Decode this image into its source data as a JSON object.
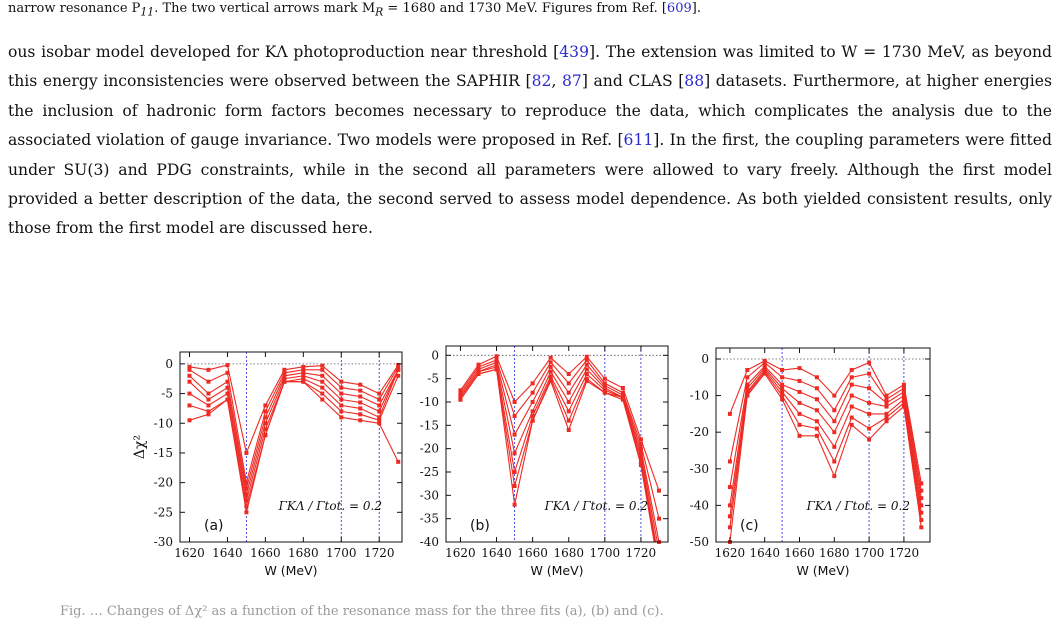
{
  "caption_tail": {
    "text": "narrow resonance P",
    "sub": "11",
    "rest": ". The two vertical arrows mark M",
    "sub2": "R",
    "rest2": " = 1680 and 1730 MeV. Figures from Ref. [",
    "ref": "609",
    "end": "]."
  },
  "paragraph": {
    "s1": "ous isobar model developed for KΛ photoproduction near threshold [",
    "r1": "439",
    "s2": "]. The extension was limited to W = 1730 MeV, as beyond this energy inconsistencies were observed between the SAPHIR [",
    "r2": "82",
    "s3": ", ",
    "r3": "87",
    "s4": "] and CLAS [",
    "r4": "88",
    "s5": "] datasets. Furthermore, at higher energies the inclusion of hadronic form factors becomes necessary to reproduce the data, which complicates the analysis due to the associated violation of gauge invariance. Two models were proposed in Ref. [",
    "r5": "611",
    "s6": "]. In the first, the coupling parameters were fitted under SU(3) and PDG constraints, while in the second all parameters were allowed to vary freely. Although the first model provided a better description of the data, the second served to assess model dependence. As both yielded consistent results, only those from the first model are discussed here."
  },
  "chart_data": [
    {
      "type": "line",
      "panel_label": "(a)",
      "annotation": "ΓKΛ / Γtot. = 0.2",
      "xlabel": "W (MeV)",
      "ylabel": "Δχ²",
      "xlim": [
        1615,
        1732
      ],
      "ylim": [
        -30,
        2
      ],
      "xticks": [
        1620,
        1640,
        1660,
        1680,
        1700,
        1720
      ],
      "yticks": [
        0,
        -5,
        -10,
        -15,
        -20,
        -25,
        -30
      ],
      "vlines": [
        1650,
        1700,
        1720
      ],
      "x": [
        1620,
        1630,
        1640,
        1650,
        1660,
        1670,
        1680,
        1690,
        1700,
        1710,
        1720,
        1730
      ],
      "series": [
        {
          "values": [
            -0.5,
            -1,
            -0.2,
            -15,
            -7,
            -1,
            -0.5,
            -0.3,
            -3,
            -3.5,
            -5,
            -0.2
          ]
        },
        {
          "values": [
            -1,
            -3,
            -1.5,
            -20,
            -8,
            -1.5,
            -1,
            -1,
            -4,
            -4.5,
            -6,
            -0.5
          ]
        },
        {
          "values": [
            -2,
            -5,
            -3,
            -21,
            -9,
            -2,
            -1.5,
            -2,
            -5,
            -5.5,
            -7,
            -1
          ]
        },
        {
          "values": [
            -3,
            -6,
            -4,
            -22,
            -10,
            -2.5,
            -2,
            -3,
            -6,
            -6.5,
            -8,
            -1
          ]
        },
        {
          "values": [
            -5,
            -7,
            -5,
            -23,
            -11,
            -3,
            -2.5,
            -4,
            -7,
            -7.5,
            -9,
            -1
          ]
        },
        {
          "values": [
            -7,
            -8,
            -6,
            -24,
            -12,
            -3,
            -3,
            -5,
            -8,
            -8.5,
            -9.5,
            -2
          ]
        },
        {
          "values": [
            -9.5,
            -8.5,
            -6,
            -25,
            -12,
            -3,
            -3,
            -6,
            -9,
            -9.5,
            -10,
            -16.5
          ]
        }
      ]
    },
    {
      "type": "line",
      "panel_label": "(b)",
      "annotation": "ΓKΛ / Γtot. = 0.2",
      "xlabel": "W (MeV)",
      "ylabel": "",
      "xlim": [
        1612,
        1735
      ],
      "ylim": [
        -40,
        2
      ],
      "xticks": [
        1620,
        1640,
        1660,
        1680,
        1700,
        1720
      ],
      "yticks": [
        0,
        -5,
        -10,
        -15,
        -20,
        -25,
        -30,
        -35,
        -40
      ],
      "vlines": [
        1650,
        1700,
        1720
      ],
      "x": [
        1620,
        1630,
        1640,
        1650,
        1660,
        1670,
        1680,
        1690,
        1700,
        1710,
        1720,
        1730
      ],
      "series": [
        {
          "values": [
            -7.5,
            -2,
            -0.2,
            -10,
            -6,
            -0.5,
            -4,
            -0.3,
            -5,
            -7,
            -18,
            -29
          ]
        },
        {
          "values": [
            -8,
            -2.5,
            -1,
            -13,
            -8,
            -1.5,
            -6,
            -1,
            -6,
            -8,
            -19,
            -35
          ]
        },
        {
          "values": [
            -8.5,
            -3,
            -1.5,
            -17,
            -10,
            -2.5,
            -8,
            -2,
            -6.5,
            -8.5,
            -20,
            -40
          ]
        },
        {
          "values": [
            -9,
            -3.5,
            -2,
            -21,
            -12,
            -3.5,
            -10,
            -3,
            -7,
            -9,
            -21,
            -42
          ]
        },
        {
          "values": [
            -9,
            -3.5,
            -2.5,
            -25,
            -13,
            -4.5,
            -12,
            -4,
            -7.5,
            -9,
            -22,
            -44
          ]
        },
        {
          "values": [
            -9.5,
            -4,
            -3,
            -28,
            -14,
            -5,
            -14,
            -5,
            -8,
            -9,
            -23,
            -45
          ]
        },
        {
          "values": [
            -9.5,
            -4,
            -3,
            -32,
            -14,
            -5.5,
            -16,
            -5.5,
            -8,
            -9.5,
            -23.5,
            -46
          ]
        }
      ]
    },
    {
      "type": "line",
      "panel_label": "(c)",
      "annotation": "ΓKΛ / Γtot. = 0.2",
      "xlabel": "W (MeV)",
      "ylabel": "",
      "xlim": [
        1612,
        1735
      ],
      "ylim": [
        -50,
        3
      ],
      "xticks": [
        1620,
        1640,
        1660,
        1680,
        1700,
        1720
      ],
      "yticks": [
        0,
        -10,
        -20,
        -30,
        -40,
        -50
      ],
      "vlines": [
        1650,
        1700,
        1720
      ],
      "x": [
        1620,
        1630,
        1640,
        1650,
        1660,
        1670,
        1680,
        1690,
        1700,
        1710,
        1720,
        1730
      ],
      "series": [
        {
          "values": [
            -15,
            -3,
            -0.5,
            -3,
            -2.5,
            -5,
            -10,
            -3,
            -1,
            -10,
            -7,
            -34
          ]
        },
        {
          "values": [
            -28,
            -5,
            -1,
            -5,
            -6,
            -8,
            -14,
            -5,
            -4,
            -11,
            -8,
            -36
          ]
        },
        {
          "values": [
            -35,
            -7,
            -2,
            -7,
            -9,
            -11,
            -17,
            -7,
            -8,
            -12,
            -9,
            -38
          ]
        },
        {
          "values": [
            -40,
            -8,
            -2.5,
            -8,
            -12,
            -14,
            -20,
            -10,
            -12,
            -13,
            -10,
            -40
          ]
        },
        {
          "values": [
            -43,
            -9,
            -3,
            -9,
            -15,
            -17,
            -24,
            -13,
            -15,
            -15,
            -11,
            -42
          ]
        },
        {
          "values": [
            -46,
            -9.5,
            -3.5,
            -10,
            -18,
            -19,
            -28,
            -16,
            -19,
            -16,
            -12,
            -44
          ]
        },
        {
          "values": [
            -50,
            -10,
            -4,
            -11,
            -21,
            -21,
            -32,
            -18,
            -22,
            -17,
            -13,
            -46
          ]
        }
      ]
    }
  ],
  "bottom_caption": "Fig. … Changes of Δχ² as a function of the resonance mass for the three fits (a), (b) and (c)."
}
